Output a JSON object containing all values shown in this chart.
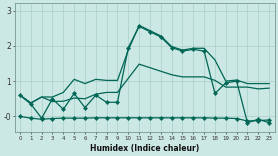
{
  "xlabel": "Humidex (Indice chaleur)",
  "background_color": "#cce8e4",
  "grid_color": "#aacfca",
  "line_color": "#006655",
  "x": [
    0,
    1,
    2,
    3,
    4,
    5,
    6,
    7,
    8,
    9,
    10,
    11,
    12,
    13,
    14,
    15,
    16,
    17,
    18,
    19,
    20,
    21,
    22,
    23
  ],
  "line_jagged": [
    0.6,
    0.35,
    -0.05,
    0.5,
    0.2,
    0.65,
    0.25,
    0.6,
    0.4,
    0.4,
    1.95,
    2.55,
    2.4,
    2.25,
    1.95,
    1.85,
    1.9,
    1.85,
    0.65,
    0.95,
    1.0,
    -0.18,
    -0.08,
    -0.18
  ],
  "line_upper": [
    0.6,
    0.38,
    0.55,
    0.55,
    0.68,
    1.05,
    0.93,
    1.05,
    1.02,
    1.02,
    1.88,
    2.58,
    2.43,
    2.28,
    1.98,
    1.88,
    1.93,
    1.93,
    1.6,
    1.0,
    1.03,
    0.93,
    0.93,
    0.93
  ],
  "line_lower": [
    0.0,
    -0.05,
    -0.08,
    -0.06,
    -0.05,
    -0.05,
    -0.05,
    -0.04,
    -0.04,
    -0.04,
    -0.04,
    -0.04,
    -0.04,
    -0.04,
    -0.04,
    -0.04,
    -0.04,
    -0.04,
    -0.05,
    -0.05,
    -0.06,
    -0.13,
    -0.12,
    -0.1
  ],
  "line_mid": [
    0.6,
    0.38,
    0.55,
    0.42,
    0.43,
    0.52,
    0.5,
    0.63,
    0.68,
    0.68,
    1.08,
    1.48,
    1.38,
    1.28,
    1.18,
    1.12,
    1.12,
    1.12,
    1.02,
    0.83,
    0.83,
    0.83,
    0.78,
    0.8
  ],
  "ylim": [
    -0.45,
    3.2
  ],
  "xlim": [
    -0.5,
    23.5
  ],
  "yticks": [
    0,
    1,
    2,
    3
  ],
  "ytick_labels": [
    "-0",
    "1",
    "2",
    "3"
  ]
}
